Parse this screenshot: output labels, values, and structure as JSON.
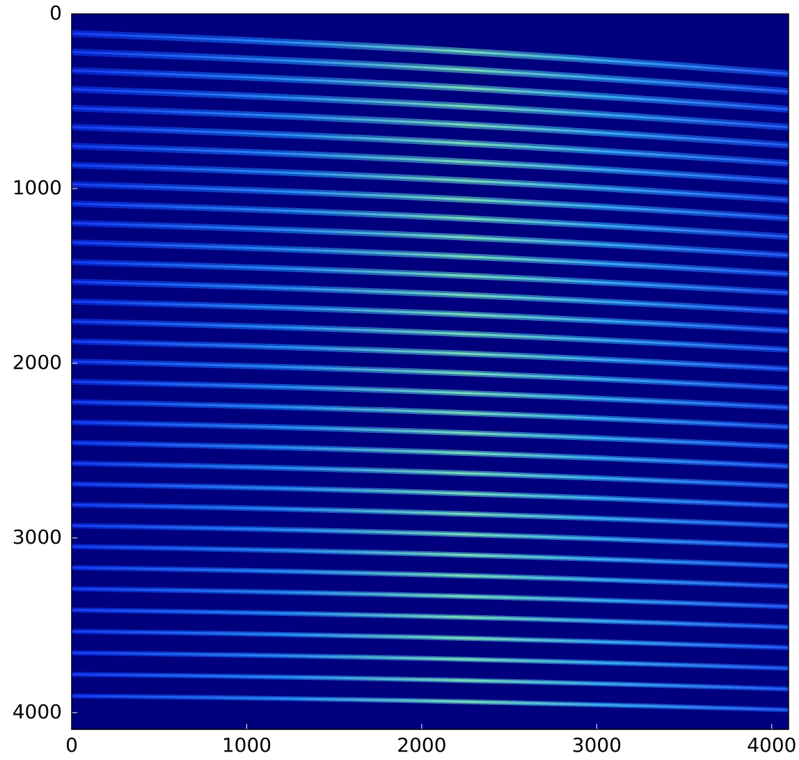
{
  "chart_data": {
    "type": "image",
    "xlim": [
      0,
      4096
    ],
    "ylim": [
      4096,
      0
    ],
    "xticks": [
      0,
      1000,
      2000,
      3000,
      4000
    ],
    "yticks": [
      0,
      1000,
      2000,
      3000,
      4000
    ],
    "background": "#00007f"
  }
}
